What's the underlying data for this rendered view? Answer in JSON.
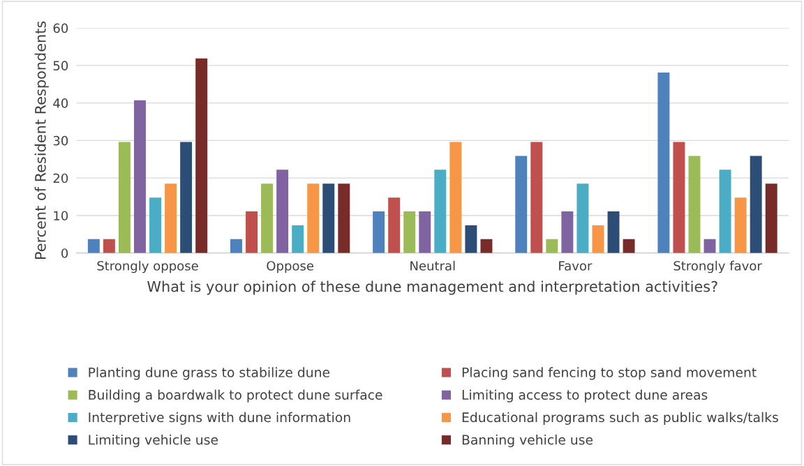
{
  "chart_data": {
    "type": "bar",
    "xlabel": "What is your opinion of these dune management and interpretation activities?",
    "ylabel": "Percent of Resident Respondents",
    "categories": [
      "Strongly oppose",
      "Oppose",
      "Neutral",
      "Favor",
      "Strongly favor"
    ],
    "ylim": [
      0,
      60
    ],
    "yticks": [
      0,
      10,
      20,
      30,
      40,
      50,
      60
    ],
    "grid": "y",
    "legend": "bottom",
    "series": [
      {
        "name": "Planting dune grass to stabilize dune",
        "color": "#4f81bd",
        "values": [
          3.7,
          3.7,
          11.1,
          25.9,
          48.1
        ]
      },
      {
        "name": "Placing sand fencing to stop sand movement",
        "color": "#c0504d",
        "values": [
          3.7,
          11.1,
          14.8,
          29.6,
          29.6
        ]
      },
      {
        "name": "Building a boardwalk to protect dune surface",
        "color": "#9bbb59",
        "values": [
          29.6,
          18.5,
          11.1,
          3.7,
          25.9
        ]
      },
      {
        "name": "Limiting access to protect dune areas",
        "color": "#8064a2",
        "values": [
          40.7,
          22.2,
          11.1,
          11.1,
          3.7
        ]
      },
      {
        "name": "Interpretive signs with dune information",
        "color": "#4bacc6",
        "values": [
          14.8,
          7.4,
          22.2,
          18.5,
          22.2
        ]
      },
      {
        "name": "Educational programs such as public walks/talks",
        "color": "#f79646",
        "values": [
          18.5,
          18.5,
          29.6,
          7.4,
          14.8
        ]
      },
      {
        "name": "Limiting vehicle use",
        "color": "#2c4d75",
        "values": [
          29.6,
          18.5,
          7.4,
          11.1,
          25.9
        ]
      },
      {
        "name": "Banning vehicle use",
        "color": "#772c2a",
        "values": [
          51.9,
          18.5,
          3.7,
          3.7,
          18.5
        ]
      }
    ]
  }
}
